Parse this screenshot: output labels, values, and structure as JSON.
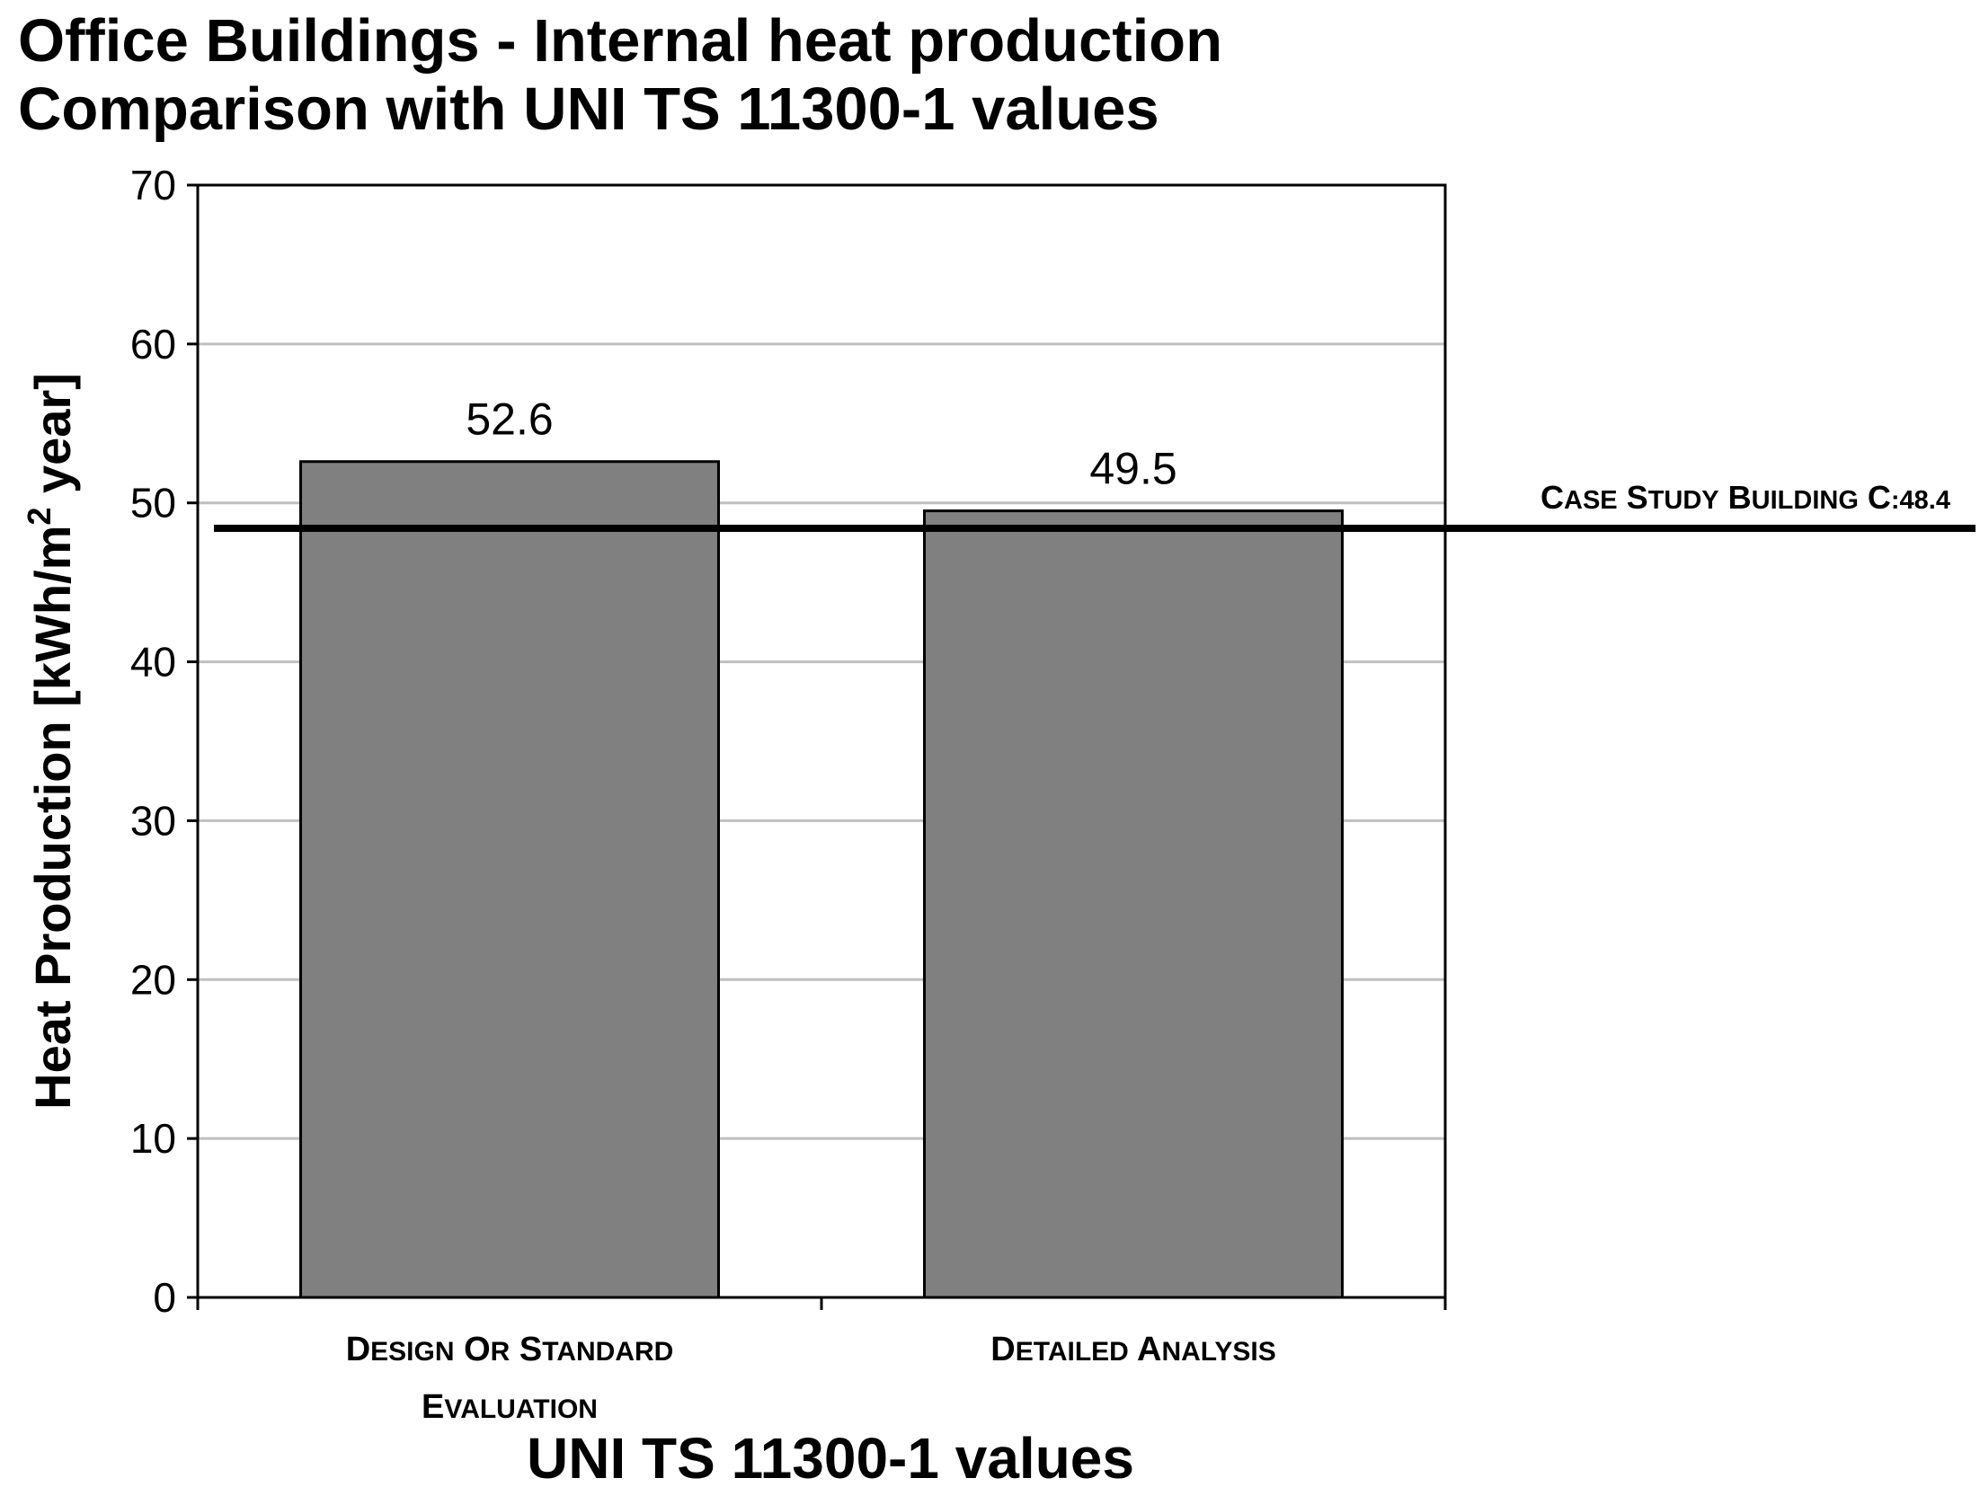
{
  "title_lines": [
    "Office Buildings - Internal heat production",
    "Comparison with UNI TS 11300-1 values"
  ],
  "chart_data": {
    "type": "bar",
    "categories": [
      "DESIGN OR STANDARD EVALUATION",
      "DETAILED ANALYSIS"
    ],
    "category_lines": [
      [
        "DESIGN OR STANDARD",
        "EVALUATION"
      ],
      [
        "DETAILED ANALYSIS"
      ]
    ],
    "values": [
      52.6,
      49.5
    ],
    "data_labels": [
      "52.6",
      "49.5"
    ],
    "xlabel": "UNI TS 11300-1 values",
    "ylabel": "Heat Production  [kWh/m² year]",
    "ylabel_main": "Heat Production  [kWh/m",
    "ylabel_sup": "2",
    "ylabel_tail": " year]",
    "ylim": [
      0,
      70
    ],
    "yticks": [
      0,
      10,
      20,
      30,
      40,
      50,
      60,
      70
    ],
    "grid": true,
    "bar_color": "#808080",
    "reference_line": {
      "value": 48.4,
      "label": "CASE STUDY BUILDING C:48.4",
      "color": "#000000"
    }
  }
}
